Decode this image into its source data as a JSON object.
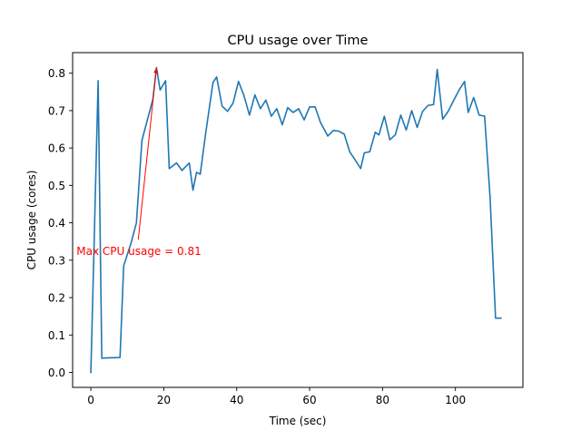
{
  "chart_data": {
    "type": "line",
    "title": "CPU usage over Time",
    "xlabel": "Time (sec)",
    "ylabel": "CPU usage (cores)",
    "xlim": [
      -5,
      118.5
    ],
    "ylim": [
      -0.04,
      0.855
    ],
    "xticks": [
      0,
      20,
      40,
      60,
      80,
      100
    ],
    "xtick_labels": [
      "0",
      "20",
      "40",
      "60",
      "80",
      "100"
    ],
    "yticks": [
      0.0,
      0.1,
      0.2,
      0.3,
      0.4,
      0.5,
      0.6,
      0.7,
      0.8
    ],
    "ytick_labels": [
      "0.0",
      "0.1",
      "0.2",
      "0.3",
      "0.4",
      "0.5",
      "0.6",
      "0.7",
      "0.8"
    ],
    "grid": false,
    "line_color": "#1f77b4",
    "annotation_color": "#ff0000",
    "annotation": {
      "text": "Max CPU usage = 0.81",
      "xy": [
        18,
        0.815
      ],
      "xytext": [
        13,
        0.355
      ]
    },
    "series": [
      {
        "name": "CPU usage",
        "x": [
          0,
          1,
          2,
          3,
          5,
          8,
          9,
          11,
          12.5,
          14,
          17,
          18,
          19,
          20.5,
          21.5,
          23.5,
          25,
          27,
          28,
          29,
          30,
          31.5,
          33.5,
          34.5,
          36,
          37.5,
          39,
          40.5,
          42,
          43.5,
          45,
          46.5,
          48,
          49.5,
          51,
          52.5,
          54,
          55.5,
          57,
          58.5,
          60,
          61.5,
          63,
          65,
          66.5,
          68,
          69.5,
          71,
          72.5,
          74,
          75,
          76.5,
          78,
          79,
          80.5,
          82,
          83.5,
          85,
          86.5,
          88,
          89.5,
          91,
          92.5,
          94,
          95,
          96.5,
          98,
          99.5,
          101,
          102.5,
          103.5,
          105,
          106.5,
          108,
          109.5,
          111,
          112.5
        ],
        "y": [
          0.0,
          0.385,
          0.78,
          0.038,
          0.039,
          0.04,
          0.285,
          0.345,
          0.4,
          0.62,
          0.73,
          0.815,
          0.755,
          0.78,
          0.545,
          0.56,
          0.54,
          0.56,
          0.487,
          0.535,
          0.53,
          0.64,
          0.775,
          0.79,
          0.712,
          0.698,
          0.72,
          0.778,
          0.74,
          0.688,
          0.742,
          0.705,
          0.728,
          0.685,
          0.705,
          0.662,
          0.708,
          0.695,
          0.705,
          0.675,
          0.71,
          0.71,
          0.668,
          0.632,
          0.647,
          0.645,
          0.637,
          0.59,
          0.568,
          0.545,
          0.587,
          0.59,
          0.642,
          0.635,
          0.685,
          0.622,
          0.635,
          0.688,
          0.648,
          0.7,
          0.655,
          0.698,
          0.714,
          0.716,
          0.81,
          0.677,
          0.698,
          0.727,
          0.755,
          0.778,
          0.695,
          0.735,
          0.688,
          0.685,
          0.468,
          0.145,
          0.145
        ]
      }
    ]
  }
}
